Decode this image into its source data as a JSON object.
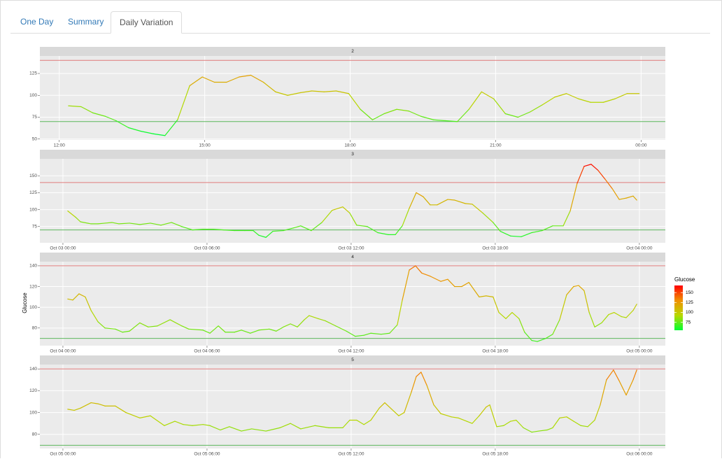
{
  "tabs": [
    "One Day",
    "Summary",
    "Daily Variation"
  ],
  "active_tab": 2,
  "y_label": "Glucose",
  "color_scale": {
    "title": "Glucose",
    "lim": [
      55,
      168
    ],
    "ticks": [
      75,
      100,
      125,
      150
    ],
    "colors": [
      "#00ff33",
      "#b8d800",
      "#f09000",
      "#ff0000"
    ]
  },
  "chart_data": [
    {
      "type": "line",
      "title": "2",
      "x": [
        12.19,
        12.45,
        12.69,
        12.95,
        13.17,
        13.43,
        13.68,
        13.94,
        14.18,
        14.44,
        14.69,
        14.95,
        15.2,
        15.45,
        15.71,
        15.95,
        16.21,
        16.46,
        16.71,
        16.97,
        17.21,
        17.46,
        17.71,
        17.97,
        18.21,
        18.46,
        18.7,
        18.96,
        19.21,
        19.46,
        19.72,
        19.96,
        20.21,
        20.45,
        20.71,
        20.96,
        21.2,
        21.46,
        21.71,
        21.96,
        22.22,
        22.46,
        22.71,
        22.96,
        23.22,
        23.46,
        23.71,
        23.96
      ],
      "values": [
        88,
        87,
        80,
        76,
        71,
        63,
        59,
        56,
        54,
        72,
        111,
        121,
        115,
        115,
        121,
        123,
        115,
        104,
        100,
        103,
        105,
        104,
        105,
        102,
        84,
        72,
        79,
        84,
        82,
        76,
        72,
        71,
        70,
        84,
        104,
        96,
        79,
        75,
        81,
        89,
        98,
        102,
        96,
        92,
        92,
        96,
        102,
        102
      ],
      "xlim": [
        11.6,
        24.5
      ],
      "xticks": [
        {
          "value": 12,
          "label": "12:00"
        },
        {
          "value": 15,
          "label": "15:00"
        },
        {
          "value": 18,
          "label": "18:00"
        },
        {
          "value": 21,
          "label": "21:00"
        },
        {
          "value": 24,
          "label": "00:00"
        }
      ],
      "ylim": [
        49,
        145
      ],
      "yticks": [
        50,
        75,
        100,
        125
      ],
      "hlines": [
        {
          "value": 70,
          "color": "#5cb85c"
        },
        {
          "value": 140,
          "color": "#e07b7b"
        }
      ]
    },
    {
      "type": "line",
      "title": "3",
      "x": [
        0.2,
        0.52,
        0.73,
        1.17,
        1.46,
        1.75,
        2.04,
        2.33,
        2.77,
        3.2,
        3.64,
        4.08,
        4.52,
        4.95,
        5.39,
        5.83,
        6.26,
        6.7,
        7.14,
        7.57,
        7.92,
        8.16,
        8.45,
        8.74,
        9.18,
        9.61,
        9.9,
        10.34,
        10.78,
        11.21,
        11.65,
        11.94,
        12.23,
        12.67,
        13.11,
        13.55,
        13.84,
        14.13,
        14.42,
        14.71,
        15,
        15.29,
        15.58,
        16.02,
        16.31,
        16.75,
        17.04,
        17.48,
        17.91,
        18.21,
        18.64,
        19.08,
        19.52,
        19.95,
        20.39,
        20.83,
        21.12,
        21.41,
        21.7,
        21.99,
        22.28,
        22.57,
        22.87,
        23.16,
        23.45,
        23.74,
        23.89
      ],
      "values": [
        98,
        89,
        82,
        79,
        79,
        80,
        81,
        79,
        80,
        78,
        80,
        77,
        81,
        75,
        70,
        71,
        71,
        70,
        69,
        69,
        69,
        62,
        59,
        68,
        69,
        73,
        76,
        69,
        81,
        99,
        104,
        95,
        77,
        75,
        66,
        63,
        63,
        76,
        102,
        125,
        119,
        107,
        107,
        115,
        114,
        109,
        108,
        95,
        81,
        68,
        61,
        60,
        66,
        69,
        76,
        76,
        98,
        139,
        164,
        167,
        158,
        145,
        131,
        115,
        117,
        120,
        114
      ],
      "xlim": [
        -0.96,
        25.08
      ],
      "xticks": [
        {
          "value": 0,
          "label": "Oct 03 00:00"
        },
        {
          "value": 6,
          "label": "Oct 03 06:00"
        },
        {
          "value": 12,
          "label": "Oct 03 12:00"
        },
        {
          "value": 18,
          "label": "Oct 03 18:00"
        },
        {
          "value": 24,
          "label": "Oct 04 00:00"
        }
      ],
      "ylim": [
        51,
        175
      ],
      "yticks": [
        75,
        100,
        125,
        150
      ],
      "hlines": [
        {
          "value": 70,
          "color": "#5cb85c"
        },
        {
          "value": 140,
          "color": "#e07b7b"
        }
      ]
    },
    {
      "type": "line",
      "title": "4",
      "x": [
        0.2,
        0.41,
        0.67,
        0.93,
        1.17,
        1.46,
        1.75,
        2.18,
        2.48,
        2.77,
        3.2,
        3.55,
        3.93,
        4.46,
        4.95,
        5.24,
        5.83,
        6.12,
        6.47,
        6.76,
        7.14,
        7.43,
        7.8,
        8.16,
        8.59,
        8.88,
        9.18,
        9.47,
        9.76,
        10.05,
        10.25,
        10.63,
        10.92,
        11.36,
        11.8,
        12.17,
        12.53,
        12.82,
        13.25,
        13.6,
        13.92,
        14.13,
        14.42,
        14.68,
        14.94,
        15.29,
        15.73,
        16.02,
        16.31,
        16.6,
        16.9,
        17.33,
        17.62,
        17.91,
        18.15,
        18.44,
        18.7,
        18.99,
        19.22,
        19.52,
        19.75,
        20.1,
        20.39,
        20.68,
        20.97,
        21.26,
        21.47,
        21.7,
        21.91,
        22.14,
        22.43,
        22.72,
        22.95,
        23.25,
        23.45,
        23.74,
        23.89
      ],
      "values": [
        108,
        107,
        113,
        110,
        97,
        86,
        80,
        79,
        76,
        77,
        85,
        81,
        82,
        88,
        82,
        79,
        78,
        75,
        82,
        76,
        76,
        78,
        75,
        78,
        79,
        77,
        81,
        84,
        81,
        88,
        92,
        89,
        87,
        82,
        77,
        72,
        73,
        75,
        74,
        75,
        83,
        107,
        136,
        140,
        133,
        130,
        125,
        127,
        120,
        120,
        124,
        110,
        111,
        110,
        95,
        89,
        95,
        89,
        76,
        68,
        67,
        70,
        74,
        88,
        112,
        120,
        121,
        116,
        95,
        81,
        85,
        93,
        95,
        91,
        90,
        97,
        103
      ],
      "xlim": [
        -0.96,
        25.08
      ],
      "xticks": [
        {
          "value": 0,
          "label": "Oct 04 00:00"
        },
        {
          "value": 6,
          "label": "Oct 04 06:00"
        },
        {
          "value": 12,
          "label": "Oct 04 12:00"
        },
        {
          "value": 18,
          "label": "Oct 04 18:00"
        },
        {
          "value": 24,
          "label": "Oct 05 00:00"
        }
      ],
      "ylim": [
        63,
        144
      ],
      "yticks": [
        80,
        100,
        120,
        140
      ],
      "hlines": [
        {
          "value": 70,
          "color": "#5cb85c"
        },
        {
          "value": 140,
          "color": "#e07b7b"
        }
      ]
    },
    {
      "type": "line",
      "title": "5",
      "x": [
        0.2,
        0.47,
        0.73,
        1.17,
        1.46,
        1.75,
        2.18,
        2.62,
        3.2,
        3.64,
        4.22,
        4.66,
        5.01,
        5.39,
        5.83,
        6.12,
        6.55,
        6.93,
        7.43,
        7.86,
        8.45,
        9.03,
        9.47,
        9.9,
        10.49,
        11.07,
        11.65,
        11.94,
        12.23,
        12.53,
        12.82,
        13.17,
        13.4,
        13.69,
        13.98,
        14.21,
        14.51,
        14.71,
        14.91,
        15.15,
        15.44,
        15.73,
        16.17,
        16.46,
        16.81,
        17.04,
        17.33,
        17.62,
        17.77,
        18.06,
        18.35,
        18.64,
        18.87,
        19.17,
        19.52,
        19.81,
        20.16,
        20.39,
        20.68,
        20.97,
        21.26,
        21.56,
        21.85,
        22.14,
        22.37,
        22.63,
        22.92,
        23.16,
        23.45,
        23.74,
        23.89
      ],
      "values": [
        103,
        102,
        104,
        109,
        108,
        106,
        106,
        100,
        95,
        97,
        88,
        92,
        89,
        88,
        89,
        88,
        84,
        87,
        83,
        85,
        83,
        86,
        90,
        85,
        88,
        86,
        86,
        93,
        93,
        89,
        93,
        104,
        109,
        103,
        97,
        100,
        119,
        133,
        137,
        125,
        107,
        99,
        96,
        95,
        92,
        90,
        97,
        105,
        107,
        87,
        88,
        92,
        93,
        86,
        82,
        83,
        84,
        86,
        95,
        96,
        92,
        88,
        87,
        93,
        107,
        130,
        139,
        129,
        116,
        130,
        139
      ],
      "xlim": [
        -0.96,
        25.08
      ],
      "xticks": [
        {
          "value": 0,
          "label": "Oct 05 00:00"
        },
        {
          "value": 6,
          "label": "Oct 05 06:00"
        },
        {
          "value": 12,
          "label": "Oct 05 12:00"
        },
        {
          "value": 18,
          "label": "Oct 05 18:00"
        },
        {
          "value": 24,
          "label": "Oct 06 00:00"
        }
      ],
      "ylim": [
        67,
        144
      ],
      "yticks": [
        80,
        100,
        120,
        140
      ],
      "hlines": [
        {
          "value": 70,
          "color": "#5cb85c"
        },
        {
          "value": 140,
          "color": "#e07b7b"
        }
      ]
    }
  ]
}
